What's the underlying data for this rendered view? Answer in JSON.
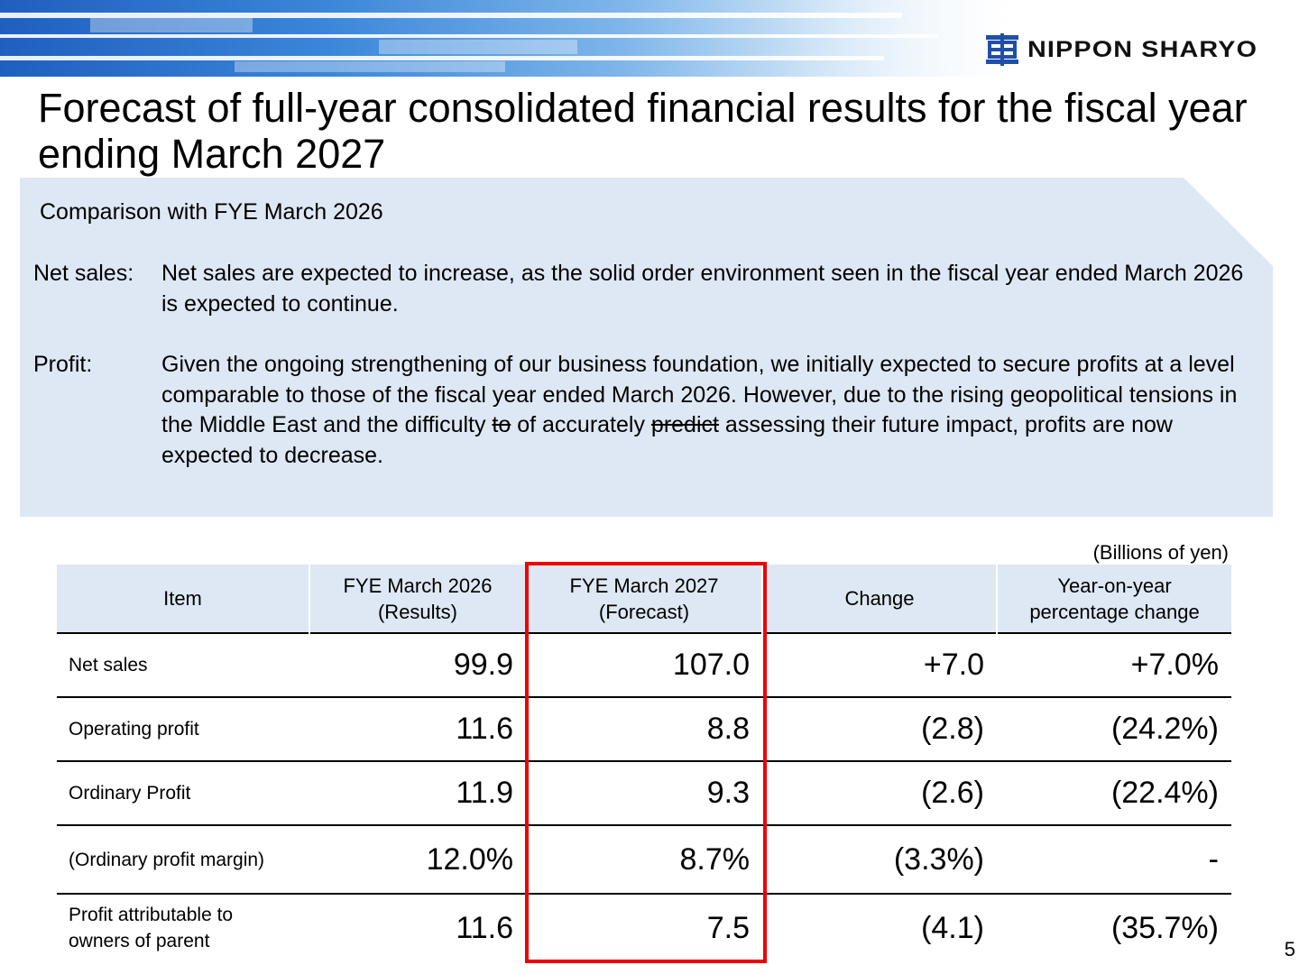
{
  "brand": {
    "name": "NIPPON SHARYO",
    "logo_icon": "nippon-sharyo-logo-icon"
  },
  "title": "Forecast of full-year consolidated financial results for the fiscal year ending March 2027",
  "summary": {
    "heading": "Comparison with FYE March 2026",
    "net_sales": {
      "label": "Net sales:",
      "text": "Net sales are expected to increase, as the solid order environment seen in the fiscal year ended March 2026 is expected to continue."
    },
    "profit": {
      "label": "Profit:",
      "text_before": "Given the ongoing strengthening of our business foundation, we initially expected to secure profits at a level comparable to those of the fiscal year ended March 2026. However, due to the rising geopolitical tensions in the Middle East and the difficulty ",
      "strike1": "to",
      "text_middle": " of accurately ",
      "strike2": "predict",
      "text_after": " assessing their future impact, profits are now expected to decrease."
    }
  },
  "table": {
    "unit": "(Billions of yen)",
    "headers": [
      "Item",
      "FYE March 2026\n(Results)",
      "FYE March 2027\n(Forecast)",
      "Change",
      "Year-on-year\npercentage change"
    ],
    "rows": [
      {
        "item": "Net sales",
        "fy2026": "99.9",
        "fy2027": "107.0",
        "change": "+7.0",
        "yoy": "+7.0%"
      },
      {
        "item": "Operating profit",
        "fy2026": "11.6",
        "fy2027": "8.8",
        "change": "(2.8)",
        "yoy": "(24.2%)"
      },
      {
        "item": "Ordinary Profit",
        "fy2026": "11.9",
        "fy2027": "9.3",
        "change": "(2.6)",
        "yoy": "(22.4%)"
      },
      {
        "item": "(Ordinary profit margin)",
        "fy2026": "12.0%",
        "fy2027": "8.7%",
        "change": "(3.3%)",
        "yoy": "-"
      },
      {
        "item": "Profit attributable to\nowners of parent",
        "fy2026": "11.6",
        "fy2027": "7.5",
        "change": "(4.1)",
        "yoy": "(35.7%)"
      }
    ],
    "highlight_color": "#ee0000"
  },
  "page_number": "5",
  "colors": {
    "panel": "#dde8f4",
    "banner_blue": "#1f5fbf",
    "highlight": "#ee0000"
  }
}
